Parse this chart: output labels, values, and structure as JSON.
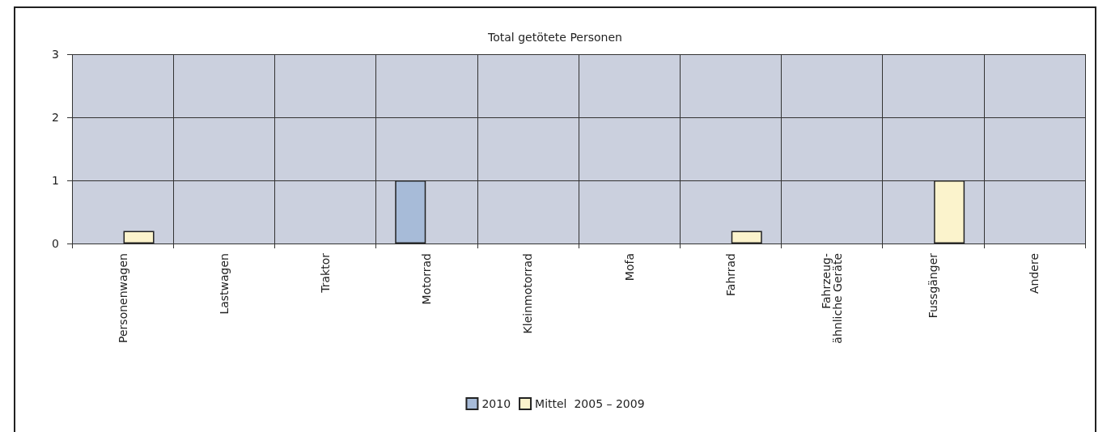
{
  "chart_data": {
    "type": "bar",
    "title": "Total getötete Personen",
    "categories": [
      "Personenwagen",
      "Lastwagen",
      "Traktor",
      "Motorrad",
      "Kleinmotorrad",
      "Mofa",
      "Fahrrad",
      "Fahrzeug-\nähnliche Geräte",
      "Fussgänger",
      "Andere"
    ],
    "series": [
      {
        "name": "2010",
        "color": "#a7bbd8",
        "values": [
          0,
          0,
          0,
          1,
          0,
          0,
          0,
          0,
          0,
          0
        ]
      },
      {
        "name": "Mittel  2005 – 2009",
        "color": "#fbf3cc",
        "values": [
          0.2,
          0,
          0,
          0,
          0,
          0,
          0.2,
          0,
          1,
          0
        ]
      }
    ],
    "ylim": [
      0,
      3
    ],
    "yticks": [
      0,
      1,
      2,
      3
    ],
    "grid": true,
    "legend": "bottom"
  }
}
